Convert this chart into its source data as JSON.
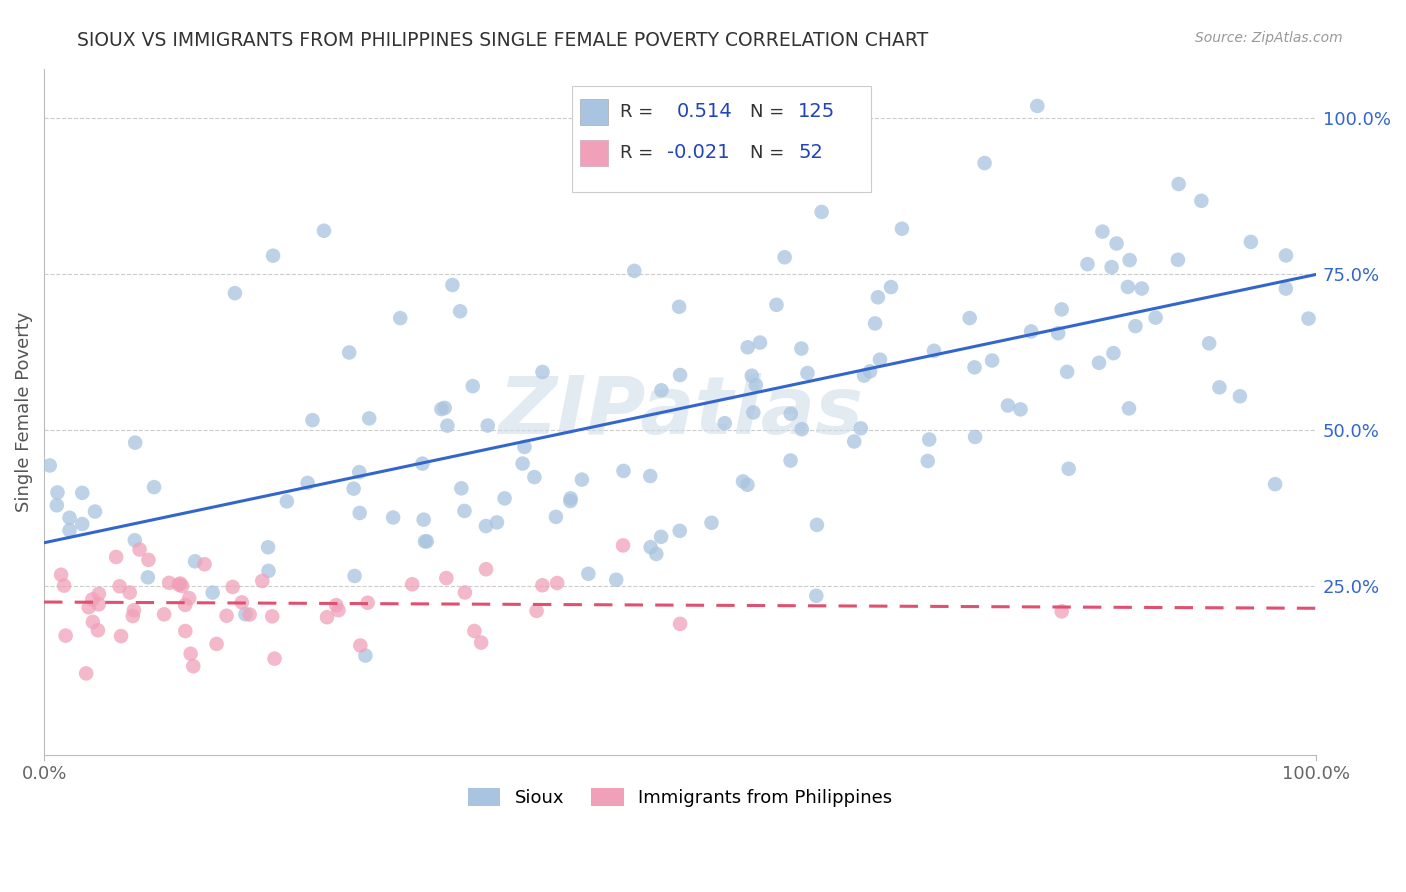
{
  "title": "SIOUX VS IMMIGRANTS FROM PHILIPPINES SINGLE FEMALE POVERTY CORRELATION CHART",
  "source": "Source: ZipAtlas.com",
  "ylabel": "Single Female Poverty",
  "watermark": "ZIPatlas",
  "sioux_color": "#a8c4e0",
  "phil_color": "#f0a0b8",
  "sioux_line_color": "#3366cc",
  "phil_line_color": "#e05070",
  "background_color": "#ffffff",
  "grid_color": "#cccccc",
  "title_color": "#333333",
  "r_label_color": "#2244bb",
  "legend_labels": [
    "Sioux",
    "Immigrants from Philippines"
  ],
  "right_ytick_labels": [
    "25.0%",
    "50.0%",
    "75.0%",
    "100.0%"
  ],
  "right_ytick_values": [
    0.25,
    0.5,
    0.75,
    1.0
  ],
  "xlim": [
    0.0,
    1.0
  ],
  "ylim": [
    -0.02,
    1.08
  ],
  "sioux_r": 0.514,
  "sioux_n": 125,
  "phil_r": -0.021,
  "phil_n": 52,
  "trend_sioux_x0": 0.0,
  "trend_sioux_y0": 0.32,
  "trend_sioux_x1": 1.0,
  "trend_sioux_y1": 0.75,
  "trend_phil_x0": 0.0,
  "trend_phil_y0": 0.225,
  "trend_phil_x1": 1.0,
  "trend_phil_y1": 0.215
}
